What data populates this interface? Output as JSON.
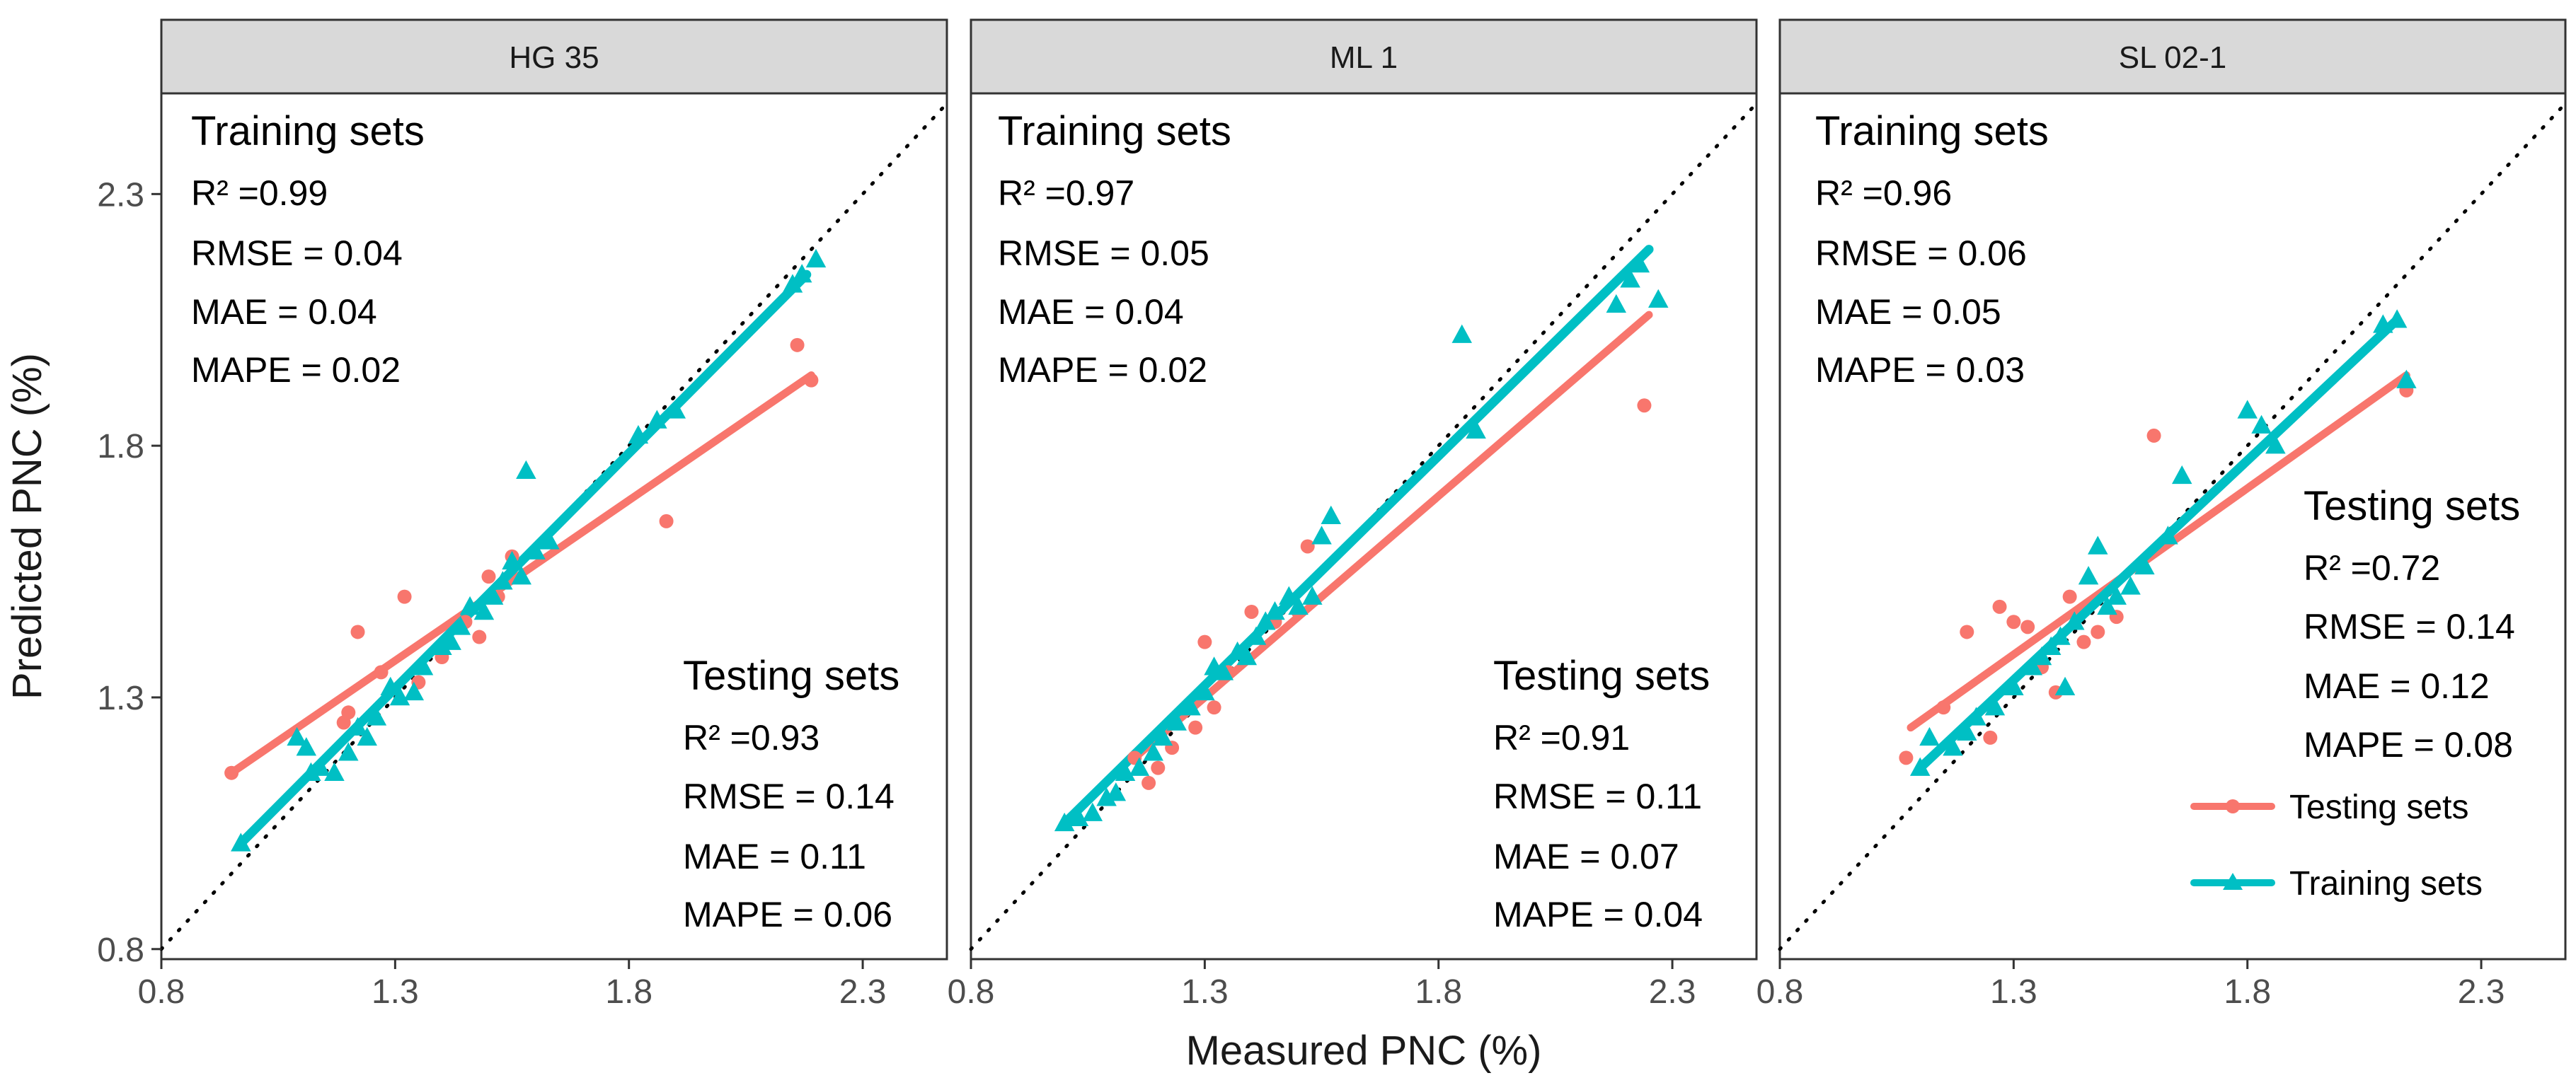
{
  "chart_data": {
    "type": "scatter",
    "x_label": "Measured  PNC (%)",
    "y_label": "Predicted  PNC (%)",
    "x_ticks": [
      "0.8",
      "1.3",
      "1.8",
      "2.3"
    ],
    "y_ticks": [
      "0.8",
      "1.3",
      "1.8",
      "2.3"
    ],
    "xlim": [
      0.8,
      2.48
    ],
    "ylim": [
      0.78,
      2.5
    ],
    "legend": {
      "position": "bottom-right of third panel",
      "items": [
        {
          "label": "Testing sets",
          "color": "#F8766D",
          "marker": "circle"
        },
        {
          "label": "Training sets",
          "color": "#00BFC4",
          "marker": "triangle"
        }
      ]
    },
    "panels": [
      {
        "strip": "HG 35",
        "training_title": "Training sets",
        "training_metrics": [
          "R² =0.99",
          "RMSE = 0.04",
          "MAE = 0.04",
          "MAPE = 0.02"
        ],
        "testing_title": "Testing sets",
        "testing_metrics": [
          "R² =0.93",
          "RMSE = 0.14",
          "MAE = 0.11",
          "MAPE = 0.06"
        ],
        "testing_fit": [
          [
            0.95,
            1.15
          ],
          [
            2.19,
            1.94
          ]
        ],
        "training_fit": [
          [
            0.97,
            1.01
          ],
          [
            2.18,
            2.14
          ]
        ],
        "testing_points": [
          [
            0.95,
            1.15
          ],
          [
            1.19,
            1.25
          ],
          [
            1.2,
            1.27
          ],
          [
            1.22,
            1.43
          ],
          [
            1.27,
            1.35
          ],
          [
            1.32,
            1.5
          ],
          [
            1.35,
            1.33
          ],
          [
            1.4,
            1.38
          ],
          [
            1.45,
            1.45
          ],
          [
            1.48,
            1.42
          ],
          [
            1.5,
            1.54
          ],
          [
            1.52,
            1.5
          ],
          [
            1.55,
            1.58
          ],
          [
            1.88,
            1.65
          ],
          [
            2.16,
            2.0
          ],
          [
            2.19,
            1.93
          ]
        ],
        "training_points": [
          [
            0.97,
            1.01
          ],
          [
            1.09,
            1.22
          ],
          [
            1.11,
            1.2
          ],
          [
            1.12,
            1.15
          ],
          [
            1.14,
            1.16
          ],
          [
            1.17,
            1.15
          ],
          [
            1.2,
            1.19
          ],
          [
            1.22,
            1.24
          ],
          [
            1.24,
            1.22
          ],
          [
            1.26,
            1.26
          ],
          [
            1.29,
            1.32
          ],
          [
            1.31,
            1.3
          ],
          [
            1.34,
            1.31
          ],
          [
            1.36,
            1.36
          ],
          [
            1.4,
            1.4
          ],
          [
            1.42,
            1.41
          ],
          [
            1.44,
            1.44
          ],
          [
            1.46,
            1.48
          ],
          [
            1.49,
            1.47
          ],
          [
            1.51,
            1.5
          ],
          [
            1.53,
            1.53
          ],
          [
            1.55,
            1.57
          ],
          [
            1.57,
            1.54
          ],
          [
            1.58,
            1.75
          ],
          [
            1.6,
            1.59
          ],
          [
            1.63,
            1.61
          ],
          [
            1.82,
            1.82
          ],
          [
            1.86,
            1.85
          ],
          [
            1.9,
            1.87
          ],
          [
            2.15,
            2.12
          ],
          [
            2.17,
            2.14
          ],
          [
            2.2,
            2.17
          ]
        ]
      },
      {
        "strip": "ML 1",
        "training_title": "Training sets",
        "training_metrics": [
          "R² =0.97",
          "RMSE = 0.05",
          "MAE = 0.04",
          "MAPE = 0.02"
        ],
        "testing_title": "Testing sets",
        "testing_metrics": [
          "R² =0.91",
          "RMSE = 0.11",
          "MAE = 0.07",
          "MAPE = 0.04"
        ],
        "testing_fit": [
          [
            1.15,
            1.18
          ],
          [
            2.25,
            2.06
          ]
        ],
        "training_fit": [
          [
            1.0,
            1.05
          ],
          [
            2.25,
            2.19
          ]
        ],
        "testing_points": [
          [
            1.15,
            1.18
          ],
          [
            1.18,
            1.13
          ],
          [
            1.2,
            1.16
          ],
          [
            1.23,
            1.2
          ],
          [
            1.28,
            1.24
          ],
          [
            1.3,
            1.41
          ],
          [
            1.32,
            1.28
          ],
          [
            1.35,
            1.35
          ],
          [
            1.4,
            1.47
          ],
          [
            1.45,
            1.45
          ],
          [
            1.5,
            1.47
          ],
          [
            1.52,
            1.6
          ],
          [
            2.24,
            1.88
          ]
        ],
        "training_points": [
          [
            1.0,
            1.05
          ],
          [
            1.03,
            1.06
          ],
          [
            1.06,
            1.07
          ],
          [
            1.09,
            1.1
          ],
          [
            1.11,
            1.11
          ],
          [
            1.13,
            1.15
          ],
          [
            1.16,
            1.16
          ],
          [
            1.19,
            1.19
          ],
          [
            1.21,
            1.22
          ],
          [
            1.24,
            1.25
          ],
          [
            1.27,
            1.28
          ],
          [
            1.3,
            1.31
          ],
          [
            1.32,
            1.36
          ],
          [
            1.34,
            1.35
          ],
          [
            1.37,
            1.39
          ],
          [
            1.39,
            1.38
          ],
          [
            1.41,
            1.42
          ],
          [
            1.43,
            1.45
          ],
          [
            1.45,
            1.47
          ],
          [
            1.48,
            1.5
          ],
          [
            1.5,
            1.48
          ],
          [
            1.53,
            1.5
          ],
          [
            1.55,
            1.62
          ],
          [
            1.57,
            1.66
          ],
          [
            1.85,
            2.02
          ],
          [
            1.88,
            1.83
          ],
          [
            2.18,
            2.08
          ],
          [
            2.21,
            2.13
          ],
          [
            2.23,
            2.16
          ],
          [
            2.27,
            2.09
          ]
        ]
      },
      {
        "strip": "SL 02-1",
        "training_title": "Training sets",
        "training_metrics": [
          "R² =0.96",
          "RMSE = 0.06",
          "MAE = 0.05",
          "MAPE = 0.03"
        ],
        "testing_title": "Testing sets",
        "testing_metrics": [
          "R² =0.72",
          "RMSE = 0.14",
          "MAE = 0.12",
          "MAPE = 0.08"
        ],
        "testing_fit": [
          [
            1.08,
            1.24
          ],
          [
            2.14,
            1.94
          ]
        ],
        "training_fit": [
          [
            1.1,
            1.16
          ],
          [
            2.12,
            2.05
          ]
        ],
        "testing_points": [
          [
            1.07,
            1.18
          ],
          [
            1.15,
            1.28
          ],
          [
            1.2,
            1.43
          ],
          [
            1.25,
            1.22
          ],
          [
            1.27,
            1.48
          ],
          [
            1.3,
            1.45
          ],
          [
            1.33,
            1.44
          ],
          [
            1.36,
            1.36
          ],
          [
            1.39,
            1.31
          ],
          [
            1.42,
            1.5
          ],
          [
            1.45,
            1.41
          ],
          [
            1.48,
            1.43
          ],
          [
            1.52,
            1.46
          ],
          [
            1.6,
            1.82
          ],
          [
            2.14,
            1.91
          ]
        ],
        "training_points": [
          [
            1.1,
            1.16
          ],
          [
            1.12,
            1.22
          ],
          [
            1.17,
            1.2
          ],
          [
            1.2,
            1.23
          ],
          [
            1.22,
            1.26
          ],
          [
            1.26,
            1.28
          ],
          [
            1.3,
            1.32
          ],
          [
            1.34,
            1.36
          ],
          [
            1.36,
            1.38
          ],
          [
            1.38,
            1.4
          ],
          [
            1.4,
            1.42
          ],
          [
            1.41,
            1.32
          ],
          [
            1.43,
            1.45
          ],
          [
            1.46,
            1.54
          ],
          [
            1.48,
            1.6
          ],
          [
            1.5,
            1.48
          ],
          [
            1.52,
            1.5
          ],
          [
            1.55,
            1.52
          ],
          [
            1.58,
            1.56
          ],
          [
            1.63,
            1.62
          ],
          [
            1.66,
            1.74
          ],
          [
            1.8,
            1.87
          ],
          [
            1.83,
            1.84
          ],
          [
            1.86,
            1.8
          ],
          [
            2.09,
            2.04
          ],
          [
            2.12,
            2.05
          ],
          [
            2.14,
            1.93
          ]
        ]
      }
    ]
  }
}
